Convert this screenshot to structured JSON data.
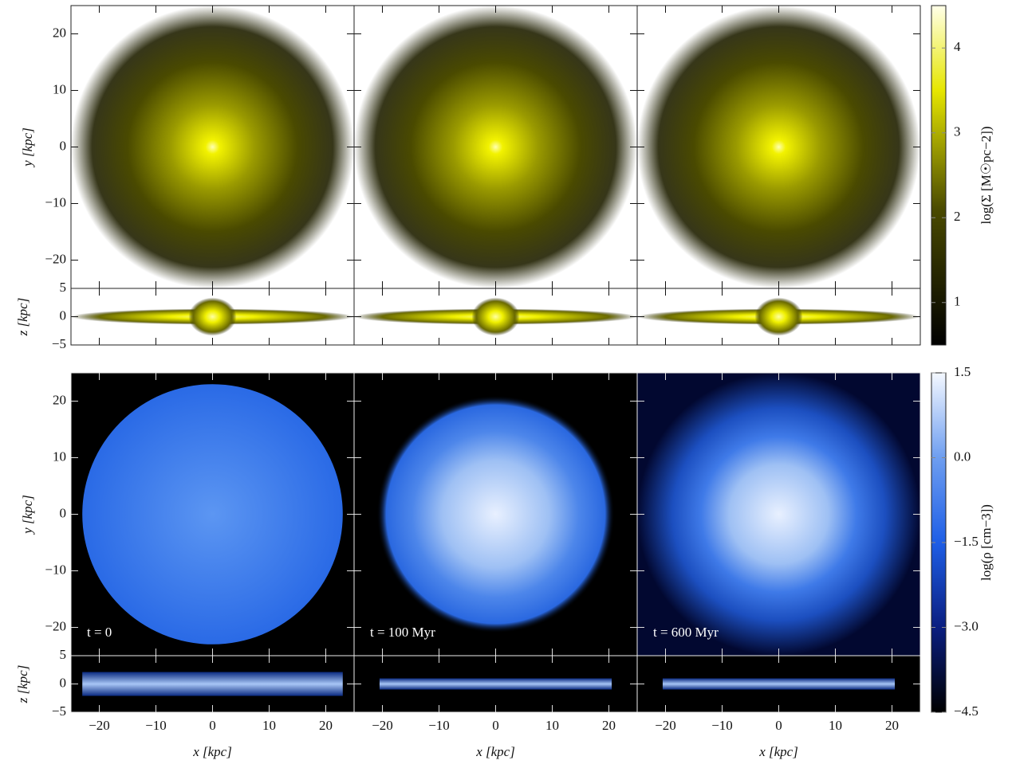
{
  "chart_data": {
    "type": "image",
    "xlabel": "x [kpc]",
    "ylabel": "y [kpc]",
    "zlabel": "z [kpc]",
    "xlim": [
      -25,
      25
    ],
    "xticks": [
      {
        "value": -20,
        "label": "−20"
      },
      {
        "value": -10,
        "label": "−10"
      },
      0,
      10,
      20
    ],
    "ylim": [
      -25,
      25
    ],
    "yticks": [
      {
        "value": -20,
        "label": "−20"
      },
      {
        "value": -10,
        "label": "−10"
      },
      0,
      10,
      20
    ],
    "zlim": [
      -5,
      5
    ],
    "zticks": [
      {
        "value": -5,
        "label": "−5"
      },
      0,
      5
    ],
    "annotations": [
      "t = 0",
      "t = 100 Myr",
      "t = 600 Myr"
    ],
    "colorbars": [
      {
        "label": "log(Σ [M☉pc−2])",
        "lim": [
          0.5,
          4.5
        ],
        "ticks": [
          1,
          2,
          3,
          4
        ]
      },
      {
        "label": "log(ρ [cm−3])",
        "lim": [
          -4.5,
          1.5
        ],
        "ticks": [
          {
            "value": -4.5,
            "label": "−4.5"
          },
          {
            "value": -3,
            "label": "−3.0"
          },
          {
            "value": -1.5,
            "label": "−1.5"
          },
          {
            "value": 0,
            "label": "0.0"
          },
          1.5
        ]
      }
    ]
  }
}
